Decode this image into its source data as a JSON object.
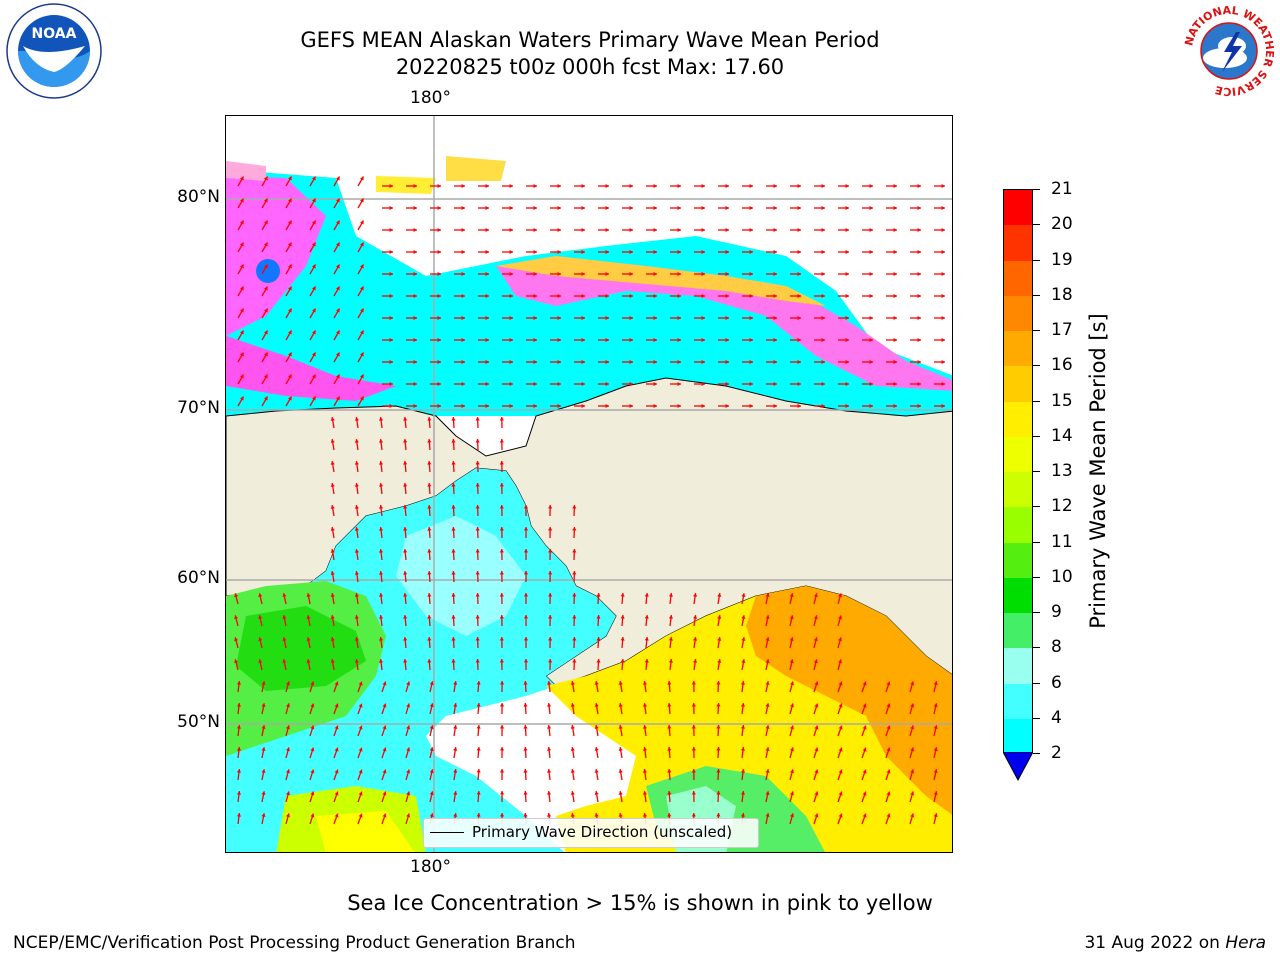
{
  "title": {
    "line1": "GEFS MEAN Alaskan Waters Primary Wave Mean Period",
    "line2": "20220825 t00z 000h fcst   Max: 17.60"
  },
  "map": {
    "lon_label_top": "180°",
    "lon_label_bottom": "180°",
    "lat_labels": [
      "80°N",
      "70°N",
      "60°N",
      "50°N"
    ],
    "legend_label": "Primary Wave Direction (unscaled)",
    "colors": {
      "land": "#f0eddb",
      "ocean_low": "#00ffff",
      "ocean_mid": "#99ffff",
      "green": "#22e01e",
      "yellow": "#ffff00",
      "orange": "#ffaa00",
      "ice_pink": "#ff44ff",
      "arrow": "#ff0000"
    }
  },
  "colorbar": {
    "title": "Primary Wave Mean Period [s]",
    "ticks": [
      "21",
      "20",
      "19",
      "18",
      "17",
      "16",
      "15",
      "14",
      "13",
      "12",
      "11",
      "10",
      "9",
      "8",
      "6",
      "4",
      "2"
    ],
    "colors": [
      "#ff0000",
      "#ff3300",
      "#ff6600",
      "#ff8800",
      "#ffaa00",
      "#ffcc00",
      "#ffee00",
      "#eeff00",
      "#ccff00",
      "#99ff00",
      "#55ee11",
      "#00dd00",
      "#44ee66",
      "#99ffee",
      "#44ffff",
      "#00ffff",
      "#0077ff"
    ],
    "extend_color": "#0000ee"
  },
  "caption": "Sea Ice Concentration > 15% is shown in pink to yellow",
  "footer": {
    "left": "NCEP/EMC/Verification Post Processing Product Generation Branch",
    "right_date": "31 Aug 2022 on ",
    "right_machine": "Hera"
  },
  "logos": {
    "noaa_text": "NOAA",
    "nws_text": "NATIONAL WEATHER SERVICE"
  }
}
